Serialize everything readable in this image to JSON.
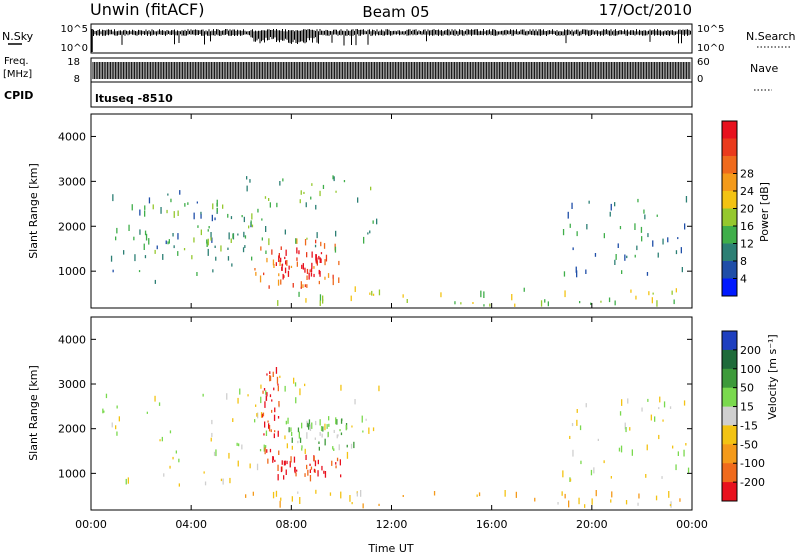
{
  "header": {
    "title": "Unwin (fitACF)",
    "beam": "Beam 05",
    "date": "17/Oct/2010"
  },
  "status_panels": {
    "nsky": {
      "label": "N.Sky",
      "ticks": [
        "10^5",
        "10^0"
      ]
    },
    "nsearch": {
      "label": "N.Search",
      "ticks": [
        "10^5",
        "10^0"
      ]
    },
    "freq": {
      "label": "Freq.",
      "unit": "[MHz]",
      "ticks": [
        "18",
        "8"
      ]
    },
    "nave": {
      "label": "Nave",
      "ticks": [
        "60",
        "0"
      ]
    },
    "cpid": {
      "label": "CPID",
      "value": "ltuseq -8510"
    }
  },
  "chart_data": [
    {
      "type": "heatmap",
      "panel": "power",
      "ylabel": "Slant Range [km]",
      "xlabel": "Time UT",
      "xticks": [
        "00:00",
        "04:00",
        "08:00",
        "12:00",
        "16:00",
        "20:00",
        "00:00"
      ],
      "xlim_hours": [
        0,
        24
      ],
      "ylim_km": [
        180,
        4500
      ],
      "yticks": [
        1000,
        2000,
        3000,
        4000
      ],
      "colorbar": {
        "label": "Power [dB]",
        "ticks": [
          "4",
          "8",
          "12",
          "16",
          "20",
          "24",
          "28"
        ],
        "colors": [
          "#0019ff",
          "#1f4ea8",
          "#2c7f74",
          "#3fae4a",
          "#95c82e",
          "#f3c313",
          "#f49a1a",
          "#ef6a1c",
          "#ea3a1c",
          "#e8111e"
        ]
      },
      "clusters": [
        {
          "t0": 0.2,
          "t1": 7.0,
          "r0": 700,
          "r1": 2800,
          "level": 2
        },
        {
          "t0": 2.0,
          "t1": 6.5,
          "r0": 1200,
          "r1": 2400,
          "level": 3
        },
        {
          "t0": 6.5,
          "t1": 10.0,
          "r0": 600,
          "r1": 1700,
          "level": 7
        },
        {
          "t0": 7.2,
          "t1": 9.2,
          "r0": 800,
          "r1": 1400,
          "level": 9
        },
        {
          "t0": 6.0,
          "t1": 11.5,
          "r0": 1300,
          "r1": 3200,
          "level": 3
        },
        {
          "t0": 18.8,
          "t1": 23.9,
          "r0": 800,
          "r1": 2600,
          "level": 2
        },
        {
          "t0": 6.0,
          "t1": 23.9,
          "r0": 180,
          "r1": 550,
          "level": 4
        }
      ]
    },
    {
      "type": "heatmap",
      "panel": "velocity",
      "ylabel": "Slant Range [km]",
      "xlabel": "Time UT",
      "xticks": [
        "00:00",
        "04:00",
        "08:00",
        "12:00",
        "16:00",
        "20:00",
        "00:00"
      ],
      "xlim_hours": [
        0,
        24
      ],
      "ylim_km": [
        180,
        4500
      ],
      "yticks": [
        1000,
        2000,
        3000,
        4000
      ],
      "colorbar": {
        "label": "Velocity [m s⁻¹]",
        "ticks": [
          "200",
          "100",
          "50",
          "15",
          "-15",
          "-50",
          "-100",
          "-200"
        ],
        "colors": [
          "#1e3fbf",
          "#1f6b3a",
          "#3d9a3a",
          "#7ad94e",
          "#cfcfcf",
          "#f3c313",
          "#f49a1a",
          "#ef6a1c",
          "#e8111e"
        ]
      },
      "clusters": [
        {
          "t0": 0.2,
          "t1": 7.0,
          "r0": 700,
          "r1": 2800,
          "level": 4
        },
        {
          "t0": 6.0,
          "t1": 11.5,
          "r0": 1300,
          "r1": 3200,
          "level": 4
        },
        {
          "t0": 6.8,
          "t1": 7.5,
          "r0": 1200,
          "r1": 3300,
          "level": 8
        },
        {
          "t0": 7.4,
          "t1": 10.0,
          "r0": 800,
          "r1": 1300,
          "level": 8
        },
        {
          "t0": 7.5,
          "t1": 10.5,
          "r0": 1500,
          "r1": 2200,
          "level": 3
        },
        {
          "t0": 18.8,
          "t1": 23.9,
          "r0": 800,
          "r1": 2600,
          "level": 4
        },
        {
          "t0": 6.0,
          "t1": 23.9,
          "r0": 180,
          "r1": 550,
          "level": 5
        }
      ]
    }
  ]
}
